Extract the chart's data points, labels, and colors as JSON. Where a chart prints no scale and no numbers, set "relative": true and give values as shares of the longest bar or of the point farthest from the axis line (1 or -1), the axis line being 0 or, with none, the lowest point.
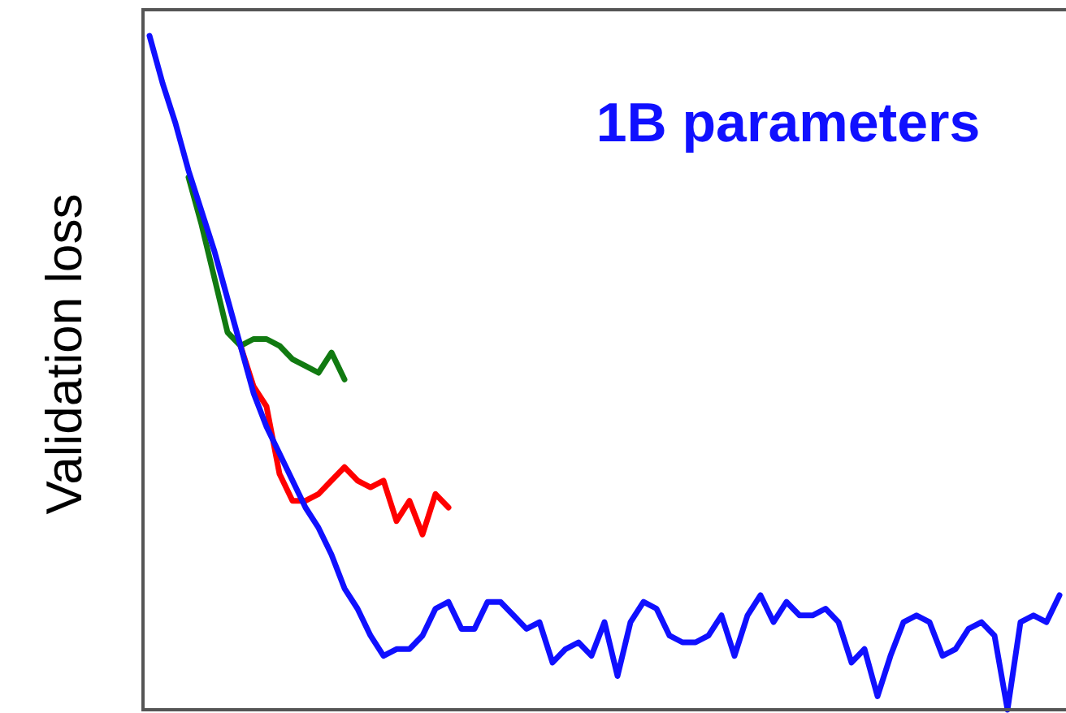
{
  "chart_data": {
    "type": "line",
    "relative": true,
    "title": "1B parameters",
    "ylabel": "Validation loss",
    "categories": [
      null,
      null,
      null,
      null,
      null,
      null,
      null,
      null,
      null,
      null,
      null,
      null,
      null,
      null,
      null,
      null,
      null,
      null,
      null,
      null,
      null,
      null,
      null,
      null,
      null,
      null,
      null,
      null,
      null,
      null,
      null,
      null,
      null,
      null,
      null,
      null,
      null,
      null,
      null,
      null,
      null,
      null,
      null,
      null,
      null,
      null,
      null,
      null,
      null,
      null,
      null,
      null,
      null,
      null,
      null,
      null,
      null,
      null,
      null,
      null,
      null,
      null,
      null,
      null,
      null,
      null,
      null,
      null,
      null,
      null,
      null
    ],
    "line_style": "solid",
    "series": [
      {
        "color": "#117a11",
        "values": [
          null,
          null,
          null,
          0.79,
          0.72,
          0.64,
          0.56,
          0.54,
          0.55,
          0.55,
          0.54,
          0.52,
          0.51,
          0.5,
          0.53,
          0.49,
          null,
          null,
          null,
          null,
          null,
          null,
          null,
          null,
          null,
          null,
          null,
          null,
          null,
          null,
          null,
          null,
          null,
          null,
          null,
          null,
          null,
          null,
          null,
          null,
          null,
          null,
          null,
          null,
          null,
          null,
          null,
          null,
          null,
          null,
          null,
          null,
          null,
          null,
          null,
          null,
          null,
          null,
          null,
          null,
          null,
          null,
          null,
          null,
          null,
          null,
          null,
          null,
          null,
          null,
          null
        ]
      },
      {
        "color": "#ff0000",
        "values": [
          null,
          null,
          null,
          null,
          null,
          null,
          null,
          0.54,
          0.48,
          0.45,
          0.35,
          0.31,
          0.31,
          0.32,
          0.34,
          0.36,
          0.34,
          0.33,
          0.34,
          0.28,
          0.31,
          0.26,
          0.32,
          0.3,
          null,
          null,
          null,
          null,
          null,
          null,
          null,
          null,
          null,
          null,
          null,
          null,
          null,
          null,
          null,
          null,
          null,
          null,
          null,
          null,
          null,
          null,
          null,
          null,
          null,
          null,
          null,
          null,
          null,
          null,
          null,
          null,
          null,
          null,
          null,
          null,
          null,
          null,
          null,
          null,
          null,
          null,
          null,
          null,
          null,
          null,
          null
        ]
      },
      {
        "color": "#1010ff",
        "values": [
          1.0,
          0.93,
          0.87,
          0.8,
          0.74,
          0.68,
          0.61,
          0.54,
          0.47,
          0.42,
          0.38,
          0.34,
          0.3,
          0.27,
          0.23,
          0.18,
          0.15,
          0.11,
          0.08,
          0.09,
          0.09,
          0.11,
          0.15,
          0.16,
          0.12,
          0.12,
          0.16,
          0.16,
          0.14,
          0.12,
          0.13,
          0.07,
          0.09,
          0.1,
          0.08,
          0.13,
          0.05,
          0.13,
          0.16,
          0.15,
          0.11,
          0.1,
          0.1,
          0.11,
          0.14,
          0.08,
          0.14,
          0.17,
          0.13,
          0.16,
          0.14,
          0.14,
          0.15,
          0.13,
          0.07,
          0.09,
          0.02,
          0.08,
          0.13,
          0.14,
          0.13,
          0.08,
          0.09,
          0.12,
          0.13,
          0.11,
          0.0,
          0.13,
          0.14,
          0.13,
          0.17
        ]
      }
    ]
  }
}
